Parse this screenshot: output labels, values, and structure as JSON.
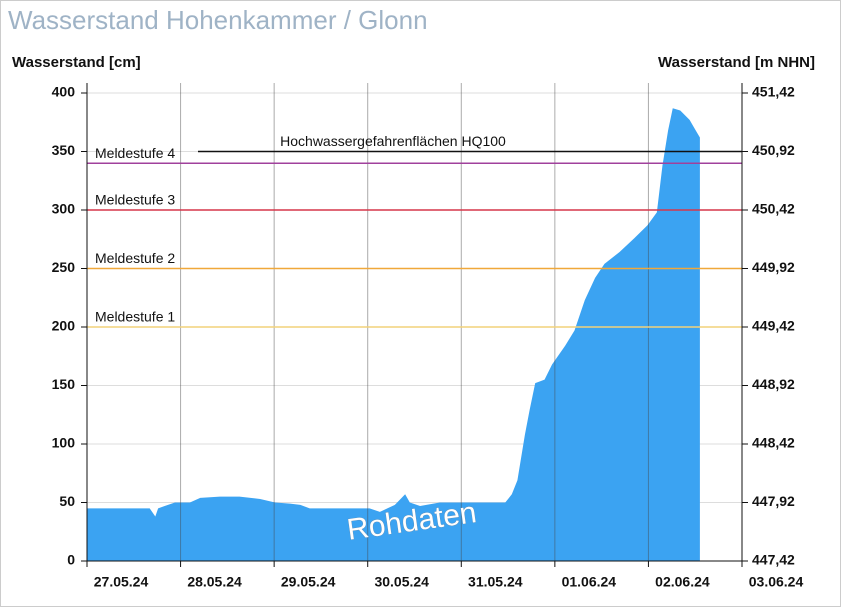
{
  "chart_data": {
    "type": "area",
    "title": "Wasserstand Hohenkammer / Glonn",
    "y_label": "Wasserstand [cm]",
    "y2_label": "Wasserstand [m NHN]",
    "annotation": "Rohdaten",
    "color": "#3ba3f2",
    "x": [
      0,
      0.67,
      0.73,
      0.76,
      0.83,
      0.94,
      1.1,
      1.21,
      1.42,
      1.63,
      1.85,
      2.01,
      2.17,
      2.28,
      2.38,
      2.7,
      3.02,
      3.13,
      3.29,
      3.4,
      3.45,
      3.56,
      3.77,
      4.09,
      4.47,
      4.54,
      4.6,
      4.68,
      4.73,
      4.79,
      4.89,
      4.97,
      5.11,
      5.21,
      5.32,
      5.43,
      5.53,
      5.69,
      5.85,
      5.99,
      6.09,
      6.15,
      6.21,
      6.26,
      6.34,
      6.44,
      6.52,
      6.55
    ],
    "values": [
      45,
      45,
      38,
      45,
      47,
      50,
      50,
      54,
      55,
      55,
      53,
      50,
      49,
      48,
      45,
      45,
      45,
      42,
      48,
      57,
      50,
      47,
      50,
      50,
      50,
      57,
      69,
      108,
      129,
      152,
      155,
      168,
      184,
      197,
      223,
      242,
      254,
      264,
      276,
      287,
      298,
      338,
      368,
      387,
      385,
      377,
      366,
      362
    ],
    "xlim": [
      0,
      7
    ],
    "xticks": [
      {
        "value": 0,
        "label": "27.05.24"
      },
      {
        "value": 1,
        "label": "28.05.24"
      },
      {
        "value": 2,
        "label": "29.05.24"
      },
      {
        "value": 3,
        "label": "30.05.24"
      },
      {
        "value": 4,
        "label": "31.05.24"
      },
      {
        "value": 5,
        "label": "01.06.24"
      },
      {
        "value": 6,
        "label": "02.06.24"
      },
      {
        "value": 7,
        "label": "03.06.24"
      }
    ],
    "ylim": [
      0,
      400
    ],
    "yticks": [
      0,
      50,
      100,
      150,
      200,
      250,
      300,
      350,
      400
    ],
    "y2lim": [
      447.42,
      451.42
    ],
    "y2ticks": [
      {
        "value": 447.42,
        "label": "447,42"
      },
      {
        "value": 447.92,
        "label": "447,92"
      },
      {
        "value": 448.42,
        "label": "448,42"
      },
      {
        "value": 448.92,
        "label": "448,92"
      },
      {
        "value": 449.42,
        "label": "449,42"
      },
      {
        "value": 449.92,
        "label": "449,92"
      },
      {
        "value": 450.42,
        "label": "450,42"
      },
      {
        "value": 450.92,
        "label": "450,92"
      },
      {
        "value": 451.42,
        "label": "451,42"
      }
    ],
    "grid": true,
    "thresholds": [
      {
        "name": "Meldestufe 1",
        "value": 200,
        "color": "#f2d27a"
      },
      {
        "name": "Meldestufe 2",
        "value": 250,
        "color": "#f0a83a"
      },
      {
        "name": "Meldestufe 3",
        "value": 300,
        "color": "#d6364a"
      },
      {
        "name": "Meldestufe 4",
        "value": 340,
        "color": "#a0409c"
      },
      {
        "name": "Hochwassergefahrenflächen HQ100",
        "value": 350,
        "color": "#111111"
      }
    ]
  }
}
